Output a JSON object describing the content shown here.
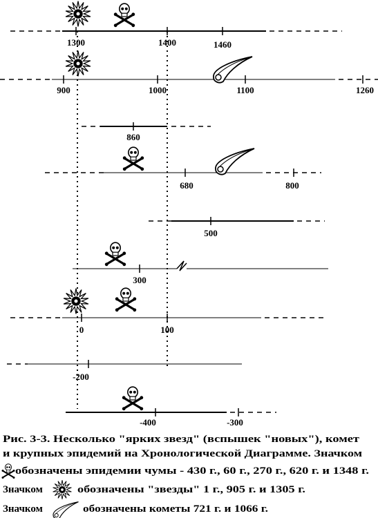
{
  "timelines": [
    {
      "labels": [
        "1300",
        "1400",
        "1460"
      ]
    },
    {
      "labels": [
        "900",
        "1000",
        "1100",
        "1260"
      ]
    },
    {
      "labels": [
        "860"
      ]
    },
    {
      "labels": [
        "680",
        "800"
      ]
    },
    {
      "labels": [
        "500"
      ]
    },
    {
      "labels": [
        "300"
      ]
    },
    {
      "labels": [
        "0",
        "100"
      ]
    },
    {
      "labels": [
        "-200"
      ]
    },
    {
      "labels": [
        "-400",
        "-300"
      ]
    }
  ],
  "caption": {
    "line1": "Рис. 3-3. Несколько \"ярких звезд\" (вспышек \"новых\"), комет",
    "line2": "и крупных эпидемий на Хронологической Диаграмме. Значком",
    "plague": "обозначены эпидемии чумы - 430 г., 60 г., 270 г., 620 г. и 1348 г.",
    "star_prefix": "Значком",
    "star": "обозначены \"звезды\" 1 г., 905 г. и 1305 г.",
    "comet_prefix": "Значком",
    "comet": "обозначены кометы 721 г. и 1066 г."
  }
}
